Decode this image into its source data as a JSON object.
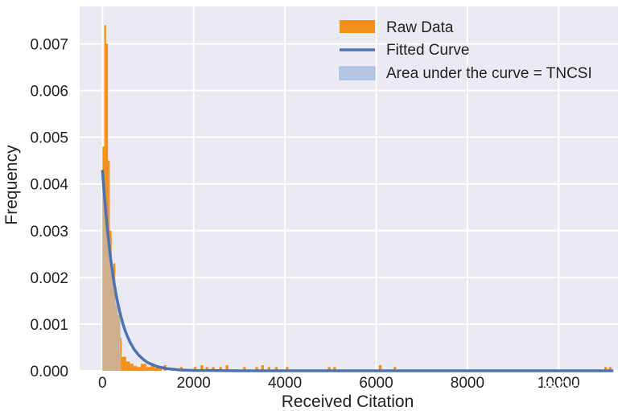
{
  "chart_data": {
    "type": "bar",
    "xlabel": "Received Citation",
    "ylabel": "Frequency",
    "xlim": [
      -500,
      11300
    ],
    "ylim": [
      0,
      0.0078
    ],
    "xticks": [
      0,
      2000,
      4000,
      6000,
      8000,
      10000
    ],
    "xtick_labels": [
      "0",
      "2000",
      "4000",
      "6000",
      "8000",
      "10000"
    ],
    "yticks": [
      0,
      0.001,
      0.002,
      0.003,
      0.004,
      0.005,
      0.006,
      0.007
    ],
    "ytick_labels": [
      "0.000",
      "0.001",
      "0.002",
      "0.003",
      "0.004",
      "0.005",
      "0.006",
      "0.007"
    ],
    "grid": true,
    "legend_position": "top-right",
    "series": [
      {
        "name": "Raw Data",
        "kind": "histogram",
        "color": "#f39019",
        "bins": [
          {
            "x0": 0,
            "x1": 40,
            "y": 0.0048
          },
          {
            "x0": 40,
            "x1": 80,
            "y": 0.0074
          },
          {
            "x0": 80,
            "x1": 120,
            "y": 0.007
          },
          {
            "x0": 120,
            "x1": 160,
            "y": 0.0045
          },
          {
            "x0": 160,
            "x1": 200,
            "y": 0.003
          },
          {
            "x0": 200,
            "x1": 240,
            "y": 0.0022
          },
          {
            "x0": 240,
            "x1": 280,
            "y": 0.0023
          },
          {
            "x0": 280,
            "x1": 320,
            "y": 0.0014
          },
          {
            "x0": 320,
            "x1": 380,
            "y": 0.0012
          },
          {
            "x0": 380,
            "x1": 420,
            "y": 0.0007
          },
          {
            "x0": 420,
            "x1": 520,
            "y": 0.0003
          },
          {
            "x0": 520,
            "x1": 600,
            "y": 0.0002
          },
          {
            "x0": 600,
            "x1": 680,
            "y": 0.00015
          },
          {
            "x0": 680,
            "x1": 760,
            "y": 0.0001
          },
          {
            "x0": 760,
            "x1": 840,
            "y": 8e-05
          },
          {
            "x0": 840,
            "x1": 960,
            "y": 0.00015
          },
          {
            "x0": 960,
            "x1": 1060,
            "y": 8e-05
          },
          {
            "x0": 1060,
            "x1": 1140,
            "y": 0.00012
          },
          {
            "x0": 1140,
            "x1": 1220,
            "y": 6e-05
          },
          {
            "x0": 1220,
            "x1": 1300,
            "y": 0.0001
          },
          {
            "x0": 1340,
            "x1": 1400,
            "y": 0.00012
          },
          {
            "x0": 1700,
            "x1": 1760,
            "y": 8e-05
          },
          {
            "x0": 2000,
            "x1": 2060,
            "y": 8e-05
          },
          {
            "x0": 2150,
            "x1": 2210,
            "y": 0.00012
          },
          {
            "x0": 2260,
            "x1": 2320,
            "y": 8e-05
          },
          {
            "x0": 2400,
            "x1": 2460,
            "y": 8e-05
          },
          {
            "x0": 2560,
            "x1": 2620,
            "y": 8e-05
          },
          {
            "x0": 2700,
            "x1": 2760,
            "y": 0.00012
          },
          {
            "x0": 3080,
            "x1": 3140,
            "y": 8e-05
          },
          {
            "x0": 3350,
            "x1": 3410,
            "y": 8e-05
          },
          {
            "x0": 3480,
            "x1": 3540,
            "y": 0.00012
          },
          {
            "x0": 3620,
            "x1": 3680,
            "y": 8e-05
          },
          {
            "x0": 3780,
            "x1": 3840,
            "y": 8e-05
          },
          {
            "x0": 4020,
            "x1": 4080,
            "y": 8e-05
          },
          {
            "x0": 4940,
            "x1": 5000,
            "y": 8e-05
          },
          {
            "x0": 5060,
            "x1": 5120,
            "y": 8e-05
          },
          {
            "x0": 6060,
            "x1": 6120,
            "y": 0.00012
          },
          {
            "x0": 6380,
            "x1": 6440,
            "y": 8e-05
          },
          {
            "x0": 11000,
            "x1": 11060,
            "y": 8e-05
          },
          {
            "x0": 11100,
            "x1": 11160,
            "y": 8e-05
          }
        ]
      },
      {
        "name": "Fitted Curve",
        "kind": "line",
        "color": "#4c72b0",
        "x": [
          0,
          25,
          50,
          75,
          100,
          125,
          150,
          175,
          200,
          225,
          250,
          275,
          300,
          325,
          350,
          375,
          400,
          450,
          500,
          550,
          600,
          700,
          800,
          900,
          1000,
          1200,
          1400,
          1700,
          2000,
          3000,
          4000,
          6000,
          8000,
          10000,
          11200
        ],
        "y": [
          0.0043,
          0.00397,
          0.00366,
          0.00337,
          0.00311,
          0.00287,
          0.00265,
          0.00244,
          0.00225,
          0.00208,
          0.00191,
          0.00177,
          0.00163,
          0.0015,
          0.00139,
          0.00128,
          0.00118,
          0.001,
          0.00085,
          0.00073,
          0.00062,
          0.00045,
          0.00033,
          0.00024,
          0.00017,
          9e-05,
          4.8e-05,
          1.8e-05,
          7e-06,
          3e-07,
          0,
          0,
          0,
          0,
          0
        ]
      },
      {
        "name": "Area under the curve = TNCSI",
        "kind": "area",
        "color": "#b4c7e7",
        "x_range": [
          0,
          400
        ]
      }
    ],
    "annotations": []
  },
  "watermark": {
    "text": "知乎 @Ocean"
  }
}
